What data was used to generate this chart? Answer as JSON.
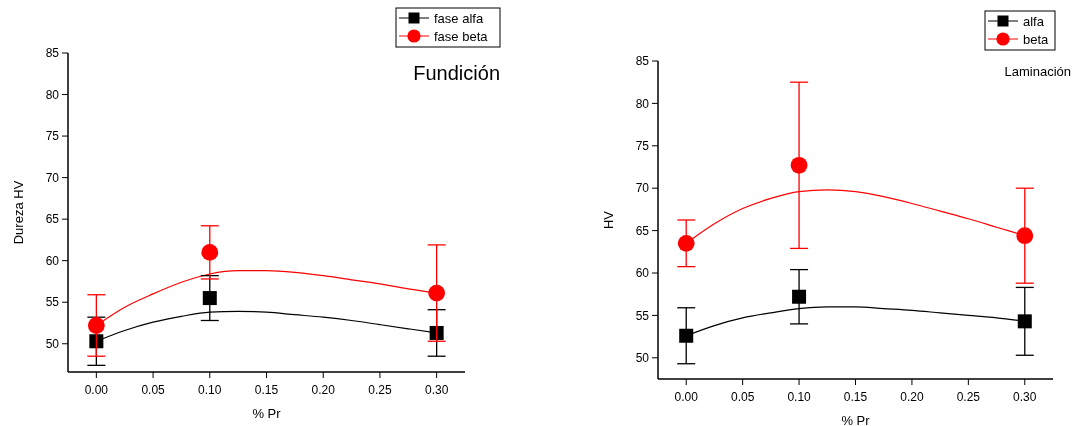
{
  "chart_data": [
    {
      "type": "scatter",
      "xlabel": "% Pr",
      "ylabel": "Dureza HV",
      "annotations": [
        "Fundición"
      ],
      "xlim": [
        -0.025,
        0.325
      ],
      "ylim": [
        46.6,
        85
      ],
      "xticks": [
        {
          "value": 0,
          "label": "0.00"
        },
        {
          "value": 0.05,
          "label": "0.05"
        },
        {
          "value": 0.1,
          "label": "0.10"
        },
        {
          "value": 0.15,
          "label": "0.15"
        },
        {
          "value": 0.2,
          "label": "0.20"
        },
        {
          "value": 0.25,
          "label": "0.25"
        },
        {
          "value": 0.3,
          "label": "0.30"
        }
      ],
      "yticks": [
        50,
        55,
        60,
        65,
        70,
        75,
        80,
        85
      ],
      "legend": "top right",
      "grid": false,
      "series": [
        {
          "type": "line",
          "color": "#000000",
          "x": [
            0,
            0.025,
            0.05,
            0.075,
            0.1,
            0.125,
            0.15,
            0.175,
            0.2,
            0.225,
            0.25,
            0.275,
            0.3
          ],
          "values": [
            50.3,
            51.6,
            52.6,
            53.3,
            53.8,
            53.9,
            53.8,
            53.5,
            53.2,
            52.8,
            52.3,
            51.8,
            51.3
          ]
        },
        {
          "type": "line",
          "color": "#ff0000",
          "x": [
            0,
            0.025,
            0.05,
            0.075,
            0.1,
            0.125,
            0.15,
            0.175,
            0.2,
            0.225,
            0.25,
            0.275,
            0.3
          ],
          "values": [
            52.2,
            54.4,
            56.0,
            57.4,
            58.4,
            58.8,
            58.8,
            58.6,
            58.2,
            57.7,
            57.2,
            56.6,
            56.1
          ]
        },
        {
          "name": "fase alfa",
          "color": "#000000",
          "marker": "square",
          "x": [
            0,
            0.1,
            0.3
          ],
          "values": [
            50.3,
            55.5,
            51.3
          ],
          "errors": [
            2.9,
            2.7,
            2.8
          ]
        },
        {
          "name": "fase beta",
          "color": "#ff0000",
          "marker": "circle",
          "x": [
            0,
            0.1,
            0.3
          ],
          "values": [
            52.2,
            61.0,
            56.1
          ],
          "errors": [
            3.7,
            3.2,
            5.8
          ]
        }
      ]
    },
    {
      "type": "scatter",
      "xlabel": "% Pr",
      "ylabel": "HV",
      "annotations": [
        "Laminación"
      ],
      "xlim": [
        -0.025,
        0.325
      ],
      "ylim": [
        47.5,
        85
      ],
      "xticks": [
        {
          "value": 0,
          "label": "0.00"
        },
        {
          "value": 0.05,
          "label": "0.05"
        },
        {
          "value": 0.1,
          "label": "0.10"
        },
        {
          "value": 0.15,
          "label": "0.15"
        },
        {
          "value": 0.2,
          "label": "0.20"
        },
        {
          "value": 0.25,
          "label": "0.25"
        },
        {
          "value": 0.3,
          "label": "0.30"
        }
      ],
      "yticks": [
        50,
        55,
        60,
        65,
        70,
        75,
        80,
        85
      ],
      "legend": "top right",
      "grid": false,
      "series": [
        {
          "type": "line",
          "color": "#000000",
          "x": [
            0,
            0.025,
            0.05,
            0.075,
            0.1,
            0.125,
            0.15,
            0.175,
            0.2,
            0.225,
            0.25,
            0.275,
            0.3
          ],
          "values": [
            52.6,
            53.8,
            54.7,
            55.3,
            55.8,
            56.0,
            56.0,
            55.8,
            55.6,
            55.3,
            55.0,
            54.7,
            54.3
          ]
        },
        {
          "type": "line",
          "color": "#ff0000",
          "x": [
            0,
            0.025,
            0.05,
            0.075,
            0.1,
            0.125,
            0.15,
            0.175,
            0.2,
            0.225,
            0.25,
            0.275,
            0.3
          ],
          "values": [
            63.5,
            65.8,
            67.6,
            68.8,
            69.6,
            69.8,
            69.6,
            69.0,
            68.2,
            67.3,
            66.4,
            65.4,
            64.4
          ]
        },
        {
          "name": "alfa",
          "color": "#000000",
          "marker": "square",
          "x": [
            0,
            0.1,
            0.3
          ],
          "values": [
            52.6,
            57.2,
            54.3
          ],
          "errors": [
            3.3,
            3.2,
            4.0
          ]
        },
        {
          "name": "beta",
          "color": "#ff0000",
          "marker": "circle",
          "x": [
            0,
            0.1,
            0.3
          ],
          "values": [
            63.5,
            72.7,
            64.4
          ],
          "errors": [
            2.75,
            9.8,
            5.6
          ]
        }
      ]
    }
  ]
}
